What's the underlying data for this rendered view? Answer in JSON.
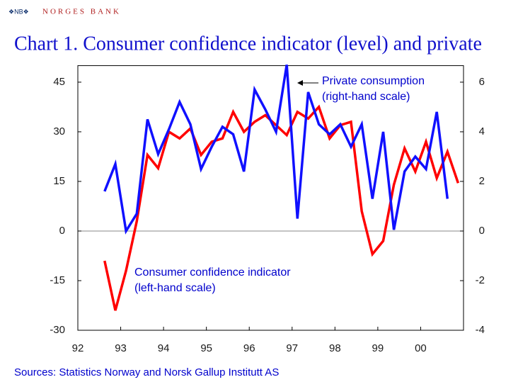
{
  "header": {
    "logo": "❖NB❖",
    "name": "NORGES BANK"
  },
  "footer": "Sources: Statistics Norway and Norsk Gallup Institutt AS",
  "chart_data": {
    "type": "line",
    "title": "Chart 1. Consumer confidence indicator (level) and private",
    "x": [
      1992.625,
      1992.875,
      1993.125,
      1993.375,
      1993.625,
      1993.875,
      1994.125,
      1994.375,
      1994.625,
      1994.875,
      1995.125,
      1995.375,
      1995.625,
      1995.875,
      1996.125,
      1996.375,
      1996.625,
      1996.875,
      1997.125,
      1997.375,
      1997.625,
      1997.875,
      1998.125,
      1998.375,
      1998.625,
      1998.875,
      1999.125,
      1999.375,
      1999.625,
      1999.875,
      2000.125,
      2000.375,
      2000.625,
      2000.875
    ],
    "series": [
      {
        "name": "Consumer confidence indicator",
        "color": "#ff0000",
        "axis": "y",
        "values": [
          -9,
          -24,
          -12,
          3,
          23,
          19,
          30,
          28,
          31,
          23,
          27,
          28,
          36,
          30,
          33,
          35,
          32,
          29,
          36,
          34,
          37.5,
          28,
          32,
          33,
          6,
          -7,
          -3,
          14,
          25,
          18,
          27,
          16,
          24,
          14.5
        ]
      },
      {
        "name": "Private consumption",
        "color": "#1010ff",
        "axis": "y2",
        "values": [
          1.6,
          2.7,
          0,
          0.7,
          4.5,
          3.1,
          4.1,
          5.2,
          4.3,
          2.5,
          3.4,
          4.2,
          3.9,
          2.4,
          5.7,
          4.9,
          4.0,
          6.7,
          0.5,
          5.6,
          4.3,
          3.9,
          4.3,
          3.4,
          4.3,
          1.3,
          4.0,
          0.05,
          2.4,
          3.0,
          2.5,
          4.8,
          1.3,
          null
        ]
      }
    ],
    "annotations": [
      {
        "text": "Private consumption",
        "sub": "(right-hand scale)"
      },
      {
        "text": "Consumer confidence indicator",
        "sub": "(left-hand scale)"
      }
    ],
    "xlim": [
      1992,
      2001
    ],
    "xticks": [
      {
        "value": 1992,
        "label": "92"
      },
      {
        "value": 1993,
        "label": "93"
      },
      {
        "value": 1994,
        "label": "94"
      },
      {
        "value": 1995,
        "label": "95"
      },
      {
        "value": 1996,
        "label": "96"
      },
      {
        "value": 1997,
        "label": "97"
      },
      {
        "value": 1998,
        "label": "98"
      },
      {
        "value": 1999,
        "label": "99"
      },
      {
        "value": 2000,
        "label": "00"
      }
    ],
    "ylim": [
      -30,
      50
    ],
    "yticks": [
      -30,
      -15,
      0,
      15,
      30,
      45
    ],
    "y2lim": [
      -4,
      6.6667
    ],
    "y2ticks": [
      -4,
      -2,
      0,
      2,
      4,
      6
    ]
  }
}
